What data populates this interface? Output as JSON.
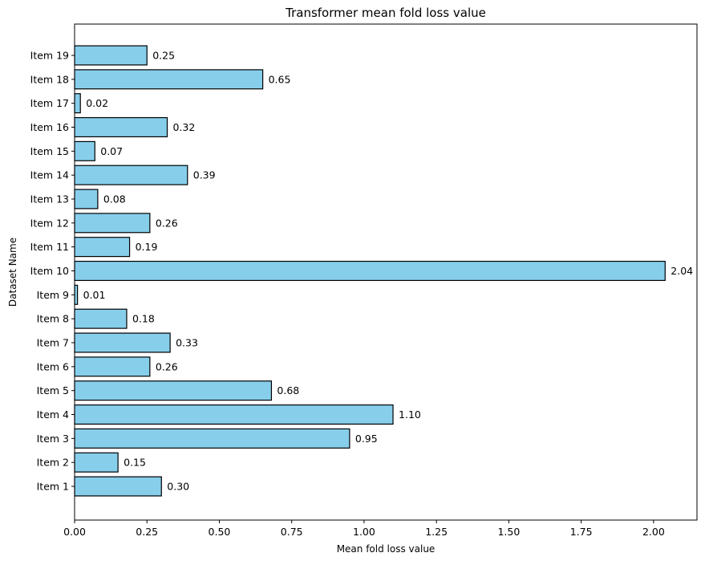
{
  "chart_data": {
    "type": "bar",
    "orientation": "horizontal",
    "title": "Transformer mean fold loss value",
    "xlabel": "Mean fold loss value",
    "ylabel": "Dataset Name",
    "categories": [
      "Item 1",
      "Item 2",
      "Item 3",
      "Item 4",
      "Item 5",
      "Item 6",
      "Item 7",
      "Item 8",
      "Item 9",
      "Item 10",
      "Item 11",
      "Item 12",
      "Item 13",
      "Item 14",
      "Item 15",
      "Item 16",
      "Item 17",
      "Item 18",
      "Item 19"
    ],
    "values": [
      0.3,
      0.15,
      0.95,
      1.1,
      0.68,
      0.26,
      0.33,
      0.18,
      0.01,
      2.04,
      0.19,
      0.26,
      0.08,
      0.39,
      0.07,
      0.32,
      0.02,
      0.65,
      0.25
    ],
    "value_labels": [
      "0.30",
      "0.15",
      "0.95",
      "1.10",
      "0.68",
      "0.26",
      "0.33",
      "0.18",
      "0.01",
      "2.04",
      "0.19",
      "0.26",
      "0.08",
      "0.39",
      "0.07",
      "0.32",
      "0.02",
      "0.65",
      "0.25"
    ],
    "xlim": [
      0,
      2.15
    ],
    "xticks": [
      0.0,
      0.25,
      0.5,
      0.75,
      1.0,
      1.25,
      1.5,
      1.75,
      2.0
    ],
    "xtick_labels": [
      "0.00",
      "0.25",
      "0.50",
      "0.75",
      "1.00",
      "1.25",
      "1.50",
      "1.75",
      "2.00"
    ],
    "bar_color": "#87CEEB",
    "edge_color": "#000000",
    "grid": false,
    "legend": "none"
  }
}
